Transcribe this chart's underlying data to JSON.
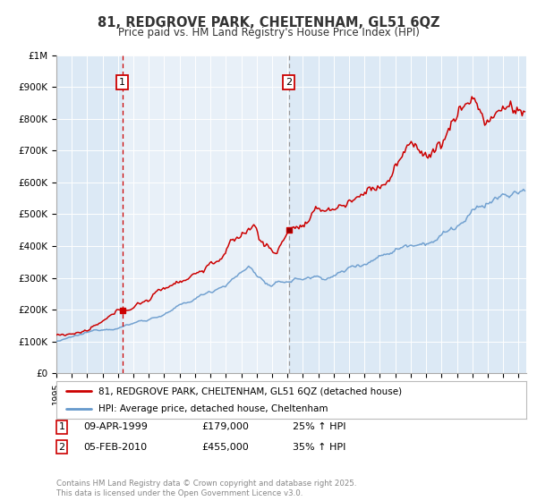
{
  "title": "81, REDGROVE PARK, CHELTENHAM, GL51 6QZ",
  "subtitle": "Price paid vs. HM Land Registry's House Price Index (HPI)",
  "legend_line1": "81, REDGROVE PARK, CHELTENHAM, GL51 6QZ (detached house)",
  "legend_line2": "HPI: Average price, detached house, Cheltenham",
  "footnote": "Contains HM Land Registry data © Crown copyright and database right 2025.\nThis data is licensed under the Open Government Licence v3.0.",
  "annotation1_date": "09-APR-1999",
  "annotation1_price": "£179,000",
  "annotation1_hpi": "25% ↑ HPI",
  "annotation1_year": 1999.28,
  "annotation2_date": "05-FEB-2010",
  "annotation2_price": "£455,000",
  "annotation2_hpi": "35% ↑ HPI",
  "annotation2_year": 2010.08,
  "red_color": "#cc0000",
  "blue_color": "#6699cc",
  "bg_color": "#dce9f5",
  "shade_bg": "#dce9f5",
  "grid_color": "#ffffff",
  "title_color": "#333333",
  "ymax": 1000000,
  "xmin": 1995.0,
  "xmax": 2025.5
}
